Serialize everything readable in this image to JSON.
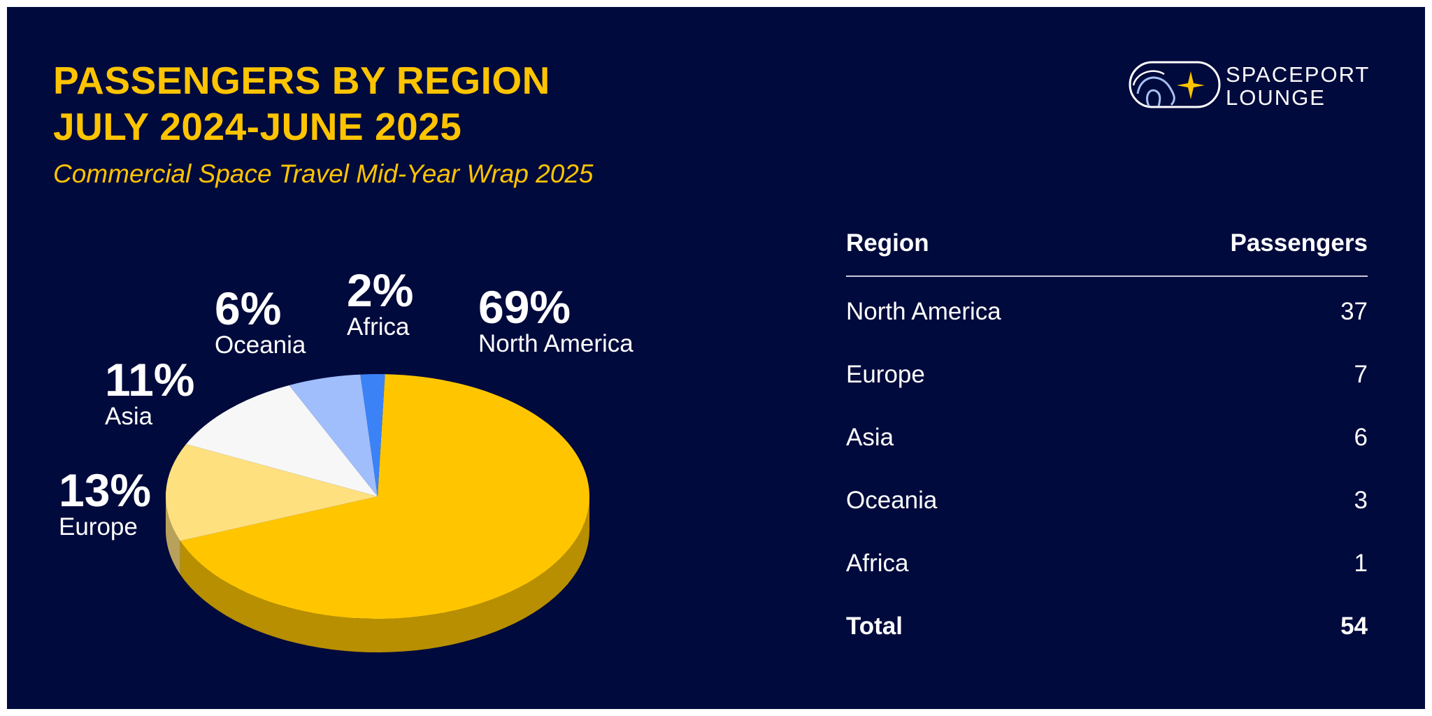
{
  "header": {
    "title_line1": "PASSENGERS BY REGION",
    "title_line2": "JULY 2024-JUNE 2025",
    "subtitle": "Commercial Space Travel Mid-Year Wrap 2025"
  },
  "logo": {
    "line1": "SPACEPORT",
    "line2": "LOUNGE"
  },
  "colors": {
    "background": "#000a3c",
    "accent": "#ffc400",
    "text": "#ffffff"
  },
  "chart_data": {
    "type": "pie",
    "style": "3d",
    "title": "PASSENGERS BY REGION JULY 2024-JUNE 2025",
    "subtitle": "Commercial Space Travel Mid-Year Wrap 2025",
    "slices": [
      {
        "label": "North America",
        "value": 37,
        "percent": "69%",
        "color": "#ffc600"
      },
      {
        "label": "Europe",
        "value": 7,
        "percent": "13%",
        "color": "#ffe07e"
      },
      {
        "label": "Asia",
        "value": 6,
        "percent": "11%",
        "color": "#f7f7f7"
      },
      {
        "label": "Oceania",
        "value": 3,
        "percent": "6%",
        "color": "#a0bdfc"
      },
      {
        "label": "Africa",
        "value": 1,
        "percent": "2%",
        "color": "#3b82f6"
      }
    ]
  },
  "table": {
    "headers": [
      "Region",
      "Passengers"
    ],
    "rows": [
      {
        "region": "North America",
        "passengers": "37"
      },
      {
        "region": "Europe",
        "passengers": "7"
      },
      {
        "region": "Asia",
        "passengers": "6"
      },
      {
        "region": "Oceania",
        "passengers": "3"
      },
      {
        "region": "Africa",
        "passengers": "1"
      }
    ],
    "total_label": "Total",
    "total_value": "54"
  }
}
